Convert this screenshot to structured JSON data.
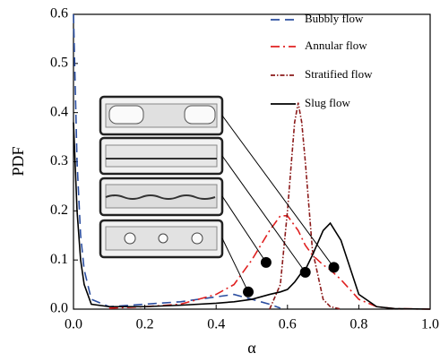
{
  "chart_data": {
    "type": "line",
    "xlabel": "α",
    "ylabel": "PDF",
    "xlim": [
      0,
      1
    ],
    "ylim": [
      0,
      0.6
    ],
    "xticks": [
      {
        "value": 0,
        "label": "0.0"
      },
      0.2,
      0.4,
      0.6,
      0.8,
      {
        "value": 1,
        "label": "1.0"
      }
    ],
    "yticks": [
      {
        "value": 0,
        "label": "0.0"
      },
      0.1,
      0.2,
      0.3,
      0.4,
      0.5,
      0.6
    ],
    "legend": "upper right",
    "x": [
      0,
      0.01,
      0.02,
      0.03,
      0.05,
      0.1,
      0.2,
      0.3,
      0.4,
      0.45,
      0.5,
      0.55,
      0.58,
      0.6,
      0.62,
      0.63,
      0.64,
      0.65,
      0.67,
      0.7,
      0.72,
      0.75,
      0.8,
      0.85,
      0.9,
      1.0
    ],
    "series": [
      {
        "name": "Bubbly flow",
        "color": "#2b4ea0",
        "dash": "10,6",
        "values": [
          0.6,
          0.3,
          0.15,
          0.08,
          0.02,
          0.005,
          0.01,
          0.015,
          0.025,
          0.03,
          0.02,
          0.01,
          0.002,
          null,
          null,
          null,
          null,
          null,
          null,
          null,
          null,
          null,
          null,
          null,
          null,
          null
        ]
      },
      {
        "name": "Annular flow",
        "color": "#e02020",
        "dash": "10,4,2,4",
        "values": [
          null,
          null,
          null,
          null,
          null,
          0.002,
          0.005,
          0.01,
          0.03,
          0.05,
          0.1,
          0.16,
          0.19,
          0.19,
          0.17,
          0.16,
          0.145,
          0.13,
          0.11,
          0.09,
          0.08,
          0.06,
          0.02,
          0.005,
          0.001,
          0
        ]
      },
      {
        "name": "Stratified flow",
        "color": "#8b1a1a",
        "dash": "5,2,1.5,2",
        "values": [
          null,
          null,
          null,
          null,
          null,
          null,
          null,
          null,
          null,
          null,
          null,
          0,
          0.05,
          0.2,
          0.38,
          0.42,
          0.38,
          0.3,
          0.12,
          0.02,
          0.005,
          0,
          null,
          null,
          null,
          null
        ]
      },
      {
        "name": "Slug flow",
        "color": "#000000",
        "dash": "",
        "values": [
          0.38,
          0.2,
          0.1,
          0.05,
          0.01,
          0.005,
          0.005,
          0.008,
          0.012,
          0.015,
          0.02,
          0.03,
          0.035,
          0.04,
          0.055,
          0.065,
          0.075,
          0.08,
          0.11,
          0.16,
          0.175,
          0.14,
          0.03,
          0.005,
          0.001,
          0
        ]
      }
    ],
    "points": {
      "x": [
        0.49,
        0.54,
        0.65,
        0.73
      ],
      "y": [
        0.035,
        0.095,
        0.075,
        0.085
      ]
    }
  }
}
